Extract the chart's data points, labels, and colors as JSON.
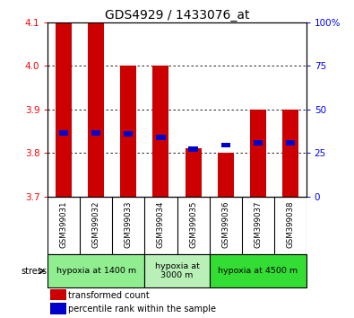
{
  "title": "GDS4929 / 1433076_at",
  "samples": [
    "GSM399031",
    "GSM399032",
    "GSM399033",
    "GSM399034",
    "GSM399035",
    "GSM399036",
    "GSM399037",
    "GSM399038"
  ],
  "bar_tops": [
    4.1,
    4.1,
    4.0,
    4.0,
    3.81,
    3.8,
    3.9,
    3.9
  ],
  "bar_bottom": 3.7,
  "percentile_values": [
    3.845,
    3.845,
    3.843,
    3.835,
    3.808,
    3.818,
    3.823,
    3.823
  ],
  "ylim_left": [
    3.7,
    4.1
  ],
  "ylim_right": [
    0,
    100
  ],
  "yticks_left": [
    3.7,
    3.8,
    3.9,
    4.0,
    4.1
  ],
  "yticks_right": [
    0,
    25,
    50,
    75,
    100
  ],
  "ytick_labels_right": [
    "0",
    "25",
    "50",
    "75",
    "100%"
  ],
  "grid_values": [
    3.8,
    3.9,
    4.0
  ],
  "bar_color": "#cc0000",
  "blue_color": "#0000cc",
  "groups": [
    {
      "label": "hypoxia at 1400 m",
      "start": 0,
      "end": 3,
      "color": "#90ee90"
    },
    {
      "label": "hypoxia at\n3000 m",
      "start": 3,
      "end": 5,
      "color": "#b8f0b8"
    },
    {
      "label": "hypoxia at 4500 m",
      "start": 5,
      "end": 8,
      "color": "#33dd33"
    }
  ],
  "stress_label": "stress",
  "legend_red_label": "transformed count",
  "legend_blue_label": "percentile rank within the sample",
  "sample_bg_color": "#cccccc",
  "plot_bg": "#ffffff"
}
